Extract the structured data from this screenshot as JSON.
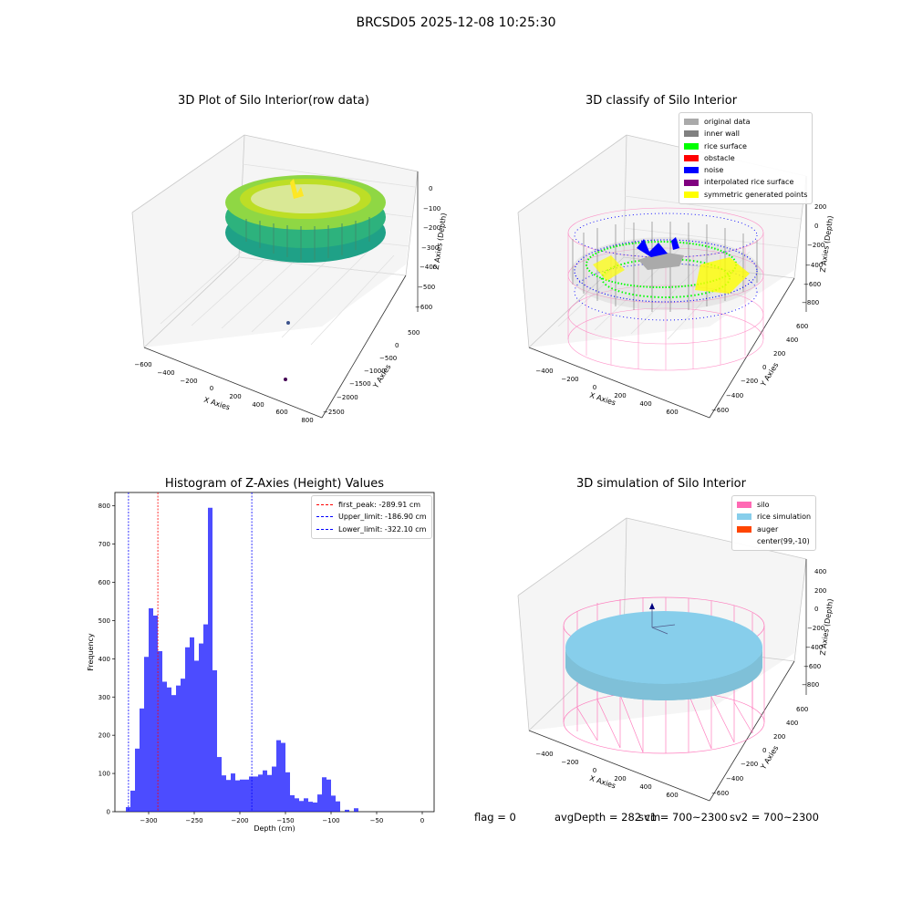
{
  "suptitle": "BRCSD05 2025-12-08 10:25:30",
  "colors": {
    "original_data": "#aaaaaa",
    "inner_wall": "#808080",
    "rice_surface": "#00ff00",
    "obstacle": "#ff0000",
    "noise": "#0000ff",
    "interpolated_rice_surface": "#800080",
    "symmetric_generated_points": "#ffff00",
    "silo": "#ff69b4",
    "rice_simulation": "#87ceeb",
    "auger": "#ff4500",
    "hist_bar": "#0000ff"
  },
  "panel1": {
    "title": "3D Plot of Silo Interior(row data)",
    "xlabel": "X Axies",
    "ylabel": "Y Axies",
    "zlabel": "Z Axies (Depth)",
    "x_ticks": [
      "−600",
      "−400",
      "−200",
      "0",
      "200",
      "400",
      "600",
      "800"
    ],
    "y_ticks": [
      "500",
      "0",
      "−500",
      "−1000",
      "−1500",
      "−2000",
      "−2500"
    ],
    "z_ticks": [
      "0",
      "−100",
      "−200",
      "−300",
      "−400",
      "−500",
      "−600"
    ]
  },
  "panel2": {
    "title": "3D classify of Silo Interior",
    "xlabel": "X Axies",
    "ylabel": "Y Axies",
    "zlabel": "Z Axies (Depth)",
    "x_ticks": [
      "−400",
      "−200",
      "0",
      "200",
      "400",
      "600"
    ],
    "y_ticks": [
      "600",
      "400",
      "200",
      "0",
      "−200",
      "−400",
      "−600"
    ],
    "z_ticks": [
      "200",
      "0",
      "−200",
      "−400",
      "−600",
      "−800"
    ],
    "legend": [
      {
        "label": "original data",
        "color": "#aaaaaa"
      },
      {
        "label": "inner wall",
        "color": "#808080"
      },
      {
        "label": "rice surface",
        "color": "#00ff00"
      },
      {
        "label": "obstacle",
        "color": "#ff0000"
      },
      {
        "label": "noise",
        "color": "#0000ff"
      },
      {
        "label": "interpolated rice surface",
        "color": "#800080"
      },
      {
        "label": "symmetric generated points",
        "color": "#ffff00"
      }
    ]
  },
  "panel4": {
    "title": "3D simulation of Silo Interior",
    "xlabel": "X Axies",
    "ylabel": "Y Axies",
    "zlabel": "Z Axies (Depth)",
    "x_ticks": [
      "−400",
      "−200",
      "0",
      "200",
      "400",
      "600"
    ],
    "y_ticks": [
      "600",
      "400",
      "200",
      "0",
      "−200",
      "−400",
      "−600"
    ],
    "z_ticks": [
      "400",
      "200",
      "0",
      "−200",
      "−400",
      "−600",
      "−800"
    ],
    "legend": [
      {
        "label": "silo",
        "color": "#ff69b4"
      },
      {
        "label": "rice simulation",
        "color": "#87ceeb"
      },
      {
        "label": "auger",
        "color": "#ff4500"
      },
      {
        "label": "center(99,-10)",
        "color": ""
      }
    ]
  },
  "footer": {
    "flag": "flag = 0",
    "avg": "avgDepth = 282 cm",
    "sv1": "sv1 = 700~2300",
    "sv2": "sv2 = 700~2300"
  },
  "chart_data": [
    {
      "type": "bar",
      "title": "Histogram of Z-Axies (Height) Values",
      "xlabel": "Depth (cm)",
      "ylabel": "Frequency",
      "xlim": [
        -337,
        13
      ],
      "ylim": [
        0,
        835
      ],
      "x_ticks": [
        -300,
        -250,
        -200,
        -150,
        -100,
        -50,
        0
      ],
      "y_ticks": [
        0,
        100,
        200,
        300,
        400,
        500,
        600,
        700,
        800
      ],
      "bin_start": -325,
      "bin_width": 5,
      "values": [
        12,
        55,
        165,
        270,
        405,
        532,
        513,
        420,
        340,
        325,
        305,
        330,
        348,
        430,
        456,
        395,
        440,
        490,
        795,
        370,
        143,
        95,
        83,
        100,
        82,
        84,
        84,
        92,
        92,
        97,
        108,
        96,
        118,
        187,
        180,
        103,
        43,
        35,
        28,
        35,
        26,
        24,
        45,
        90,
        84,
        42,
        27,
        0,
        5,
        0,
        9
      ],
      "reference_lines": [
        {
          "label": "first_peak: -289.91 cm",
          "value": -289.91,
          "color": "#ff0000"
        },
        {
          "label": "Upper_limit: -186.90 cm",
          "value": -186.9,
          "color": "#0000ff"
        },
        {
          "label": "Lower_limit: -322.10 cm",
          "value": -322.1,
          "color": "#0000ff"
        }
      ],
      "legend_position": "top-right",
      "grid": false
    }
  ]
}
